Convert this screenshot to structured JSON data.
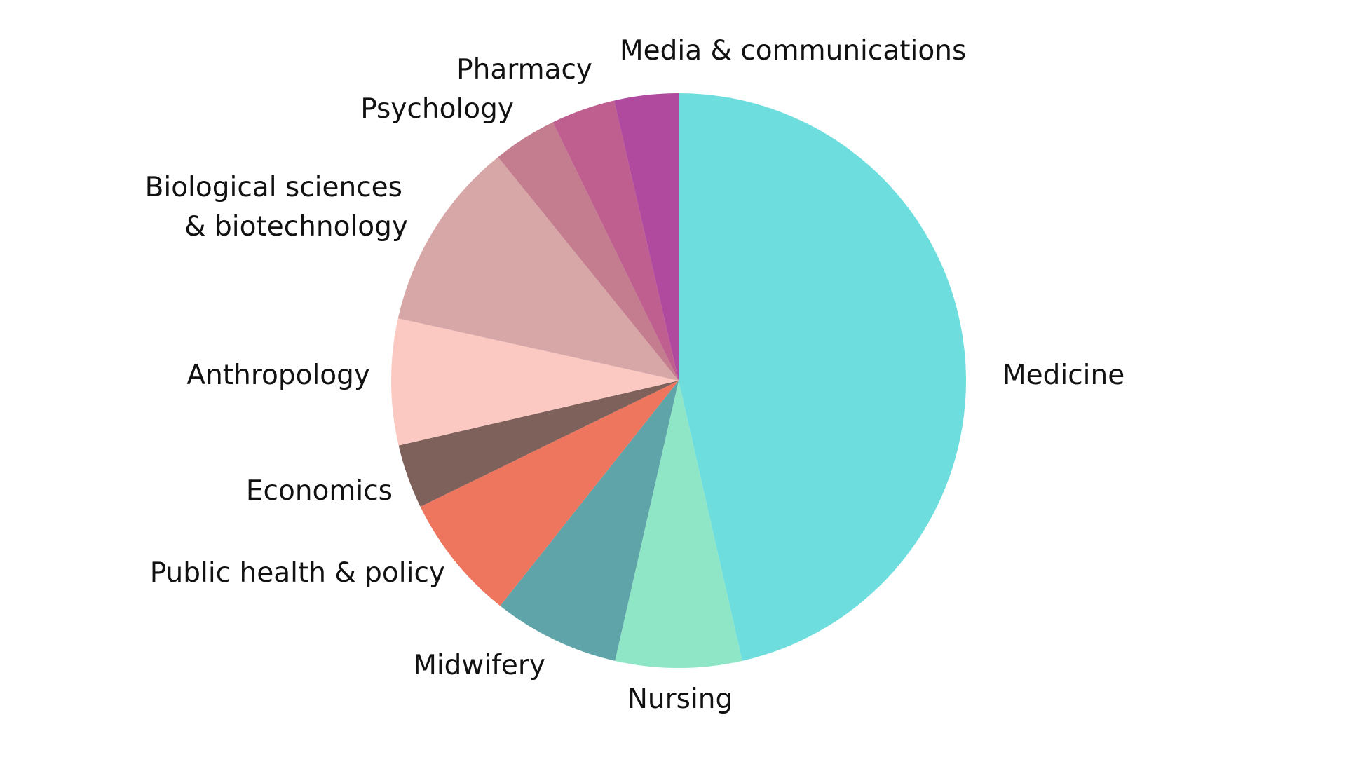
{
  "chart_data": {
    "type": "pie",
    "slices": [
      {
        "label": "Medicine",
        "value": 46.4,
        "color": "#6EDDDE"
      },
      {
        "label": "Nursing",
        "value": 7.1,
        "color": "#8FE6C6"
      },
      {
        "label": "Midwifery",
        "value": 7.1,
        "color": "#5FA4A8"
      },
      {
        "label": "Public health & policy",
        "value": 7.1,
        "color": "#EE765F"
      },
      {
        "label": "Economics",
        "value": 3.6,
        "color": "#7F615B"
      },
      {
        "label": "Anthropology",
        "value": 7.1,
        "color": "#FCC8C2"
      },
      {
        "label": "Biological sciences & biotechnology",
        "value": 10.7,
        "color": "#D7A7A7"
      },
      {
        "label": "Psychology",
        "value": 3.6,
        "color": "#C47C8F"
      },
      {
        "label": "Pharmacy",
        "value": 3.6,
        "color": "#BE5F90"
      },
      {
        "label": "Media & communications",
        "value": 3.6,
        "color": "#AF4A9F"
      }
    ],
    "start_angle": "12 o'clock",
    "direction": "clockwise",
    "legend": "none",
    "labels": "outside"
  }
}
